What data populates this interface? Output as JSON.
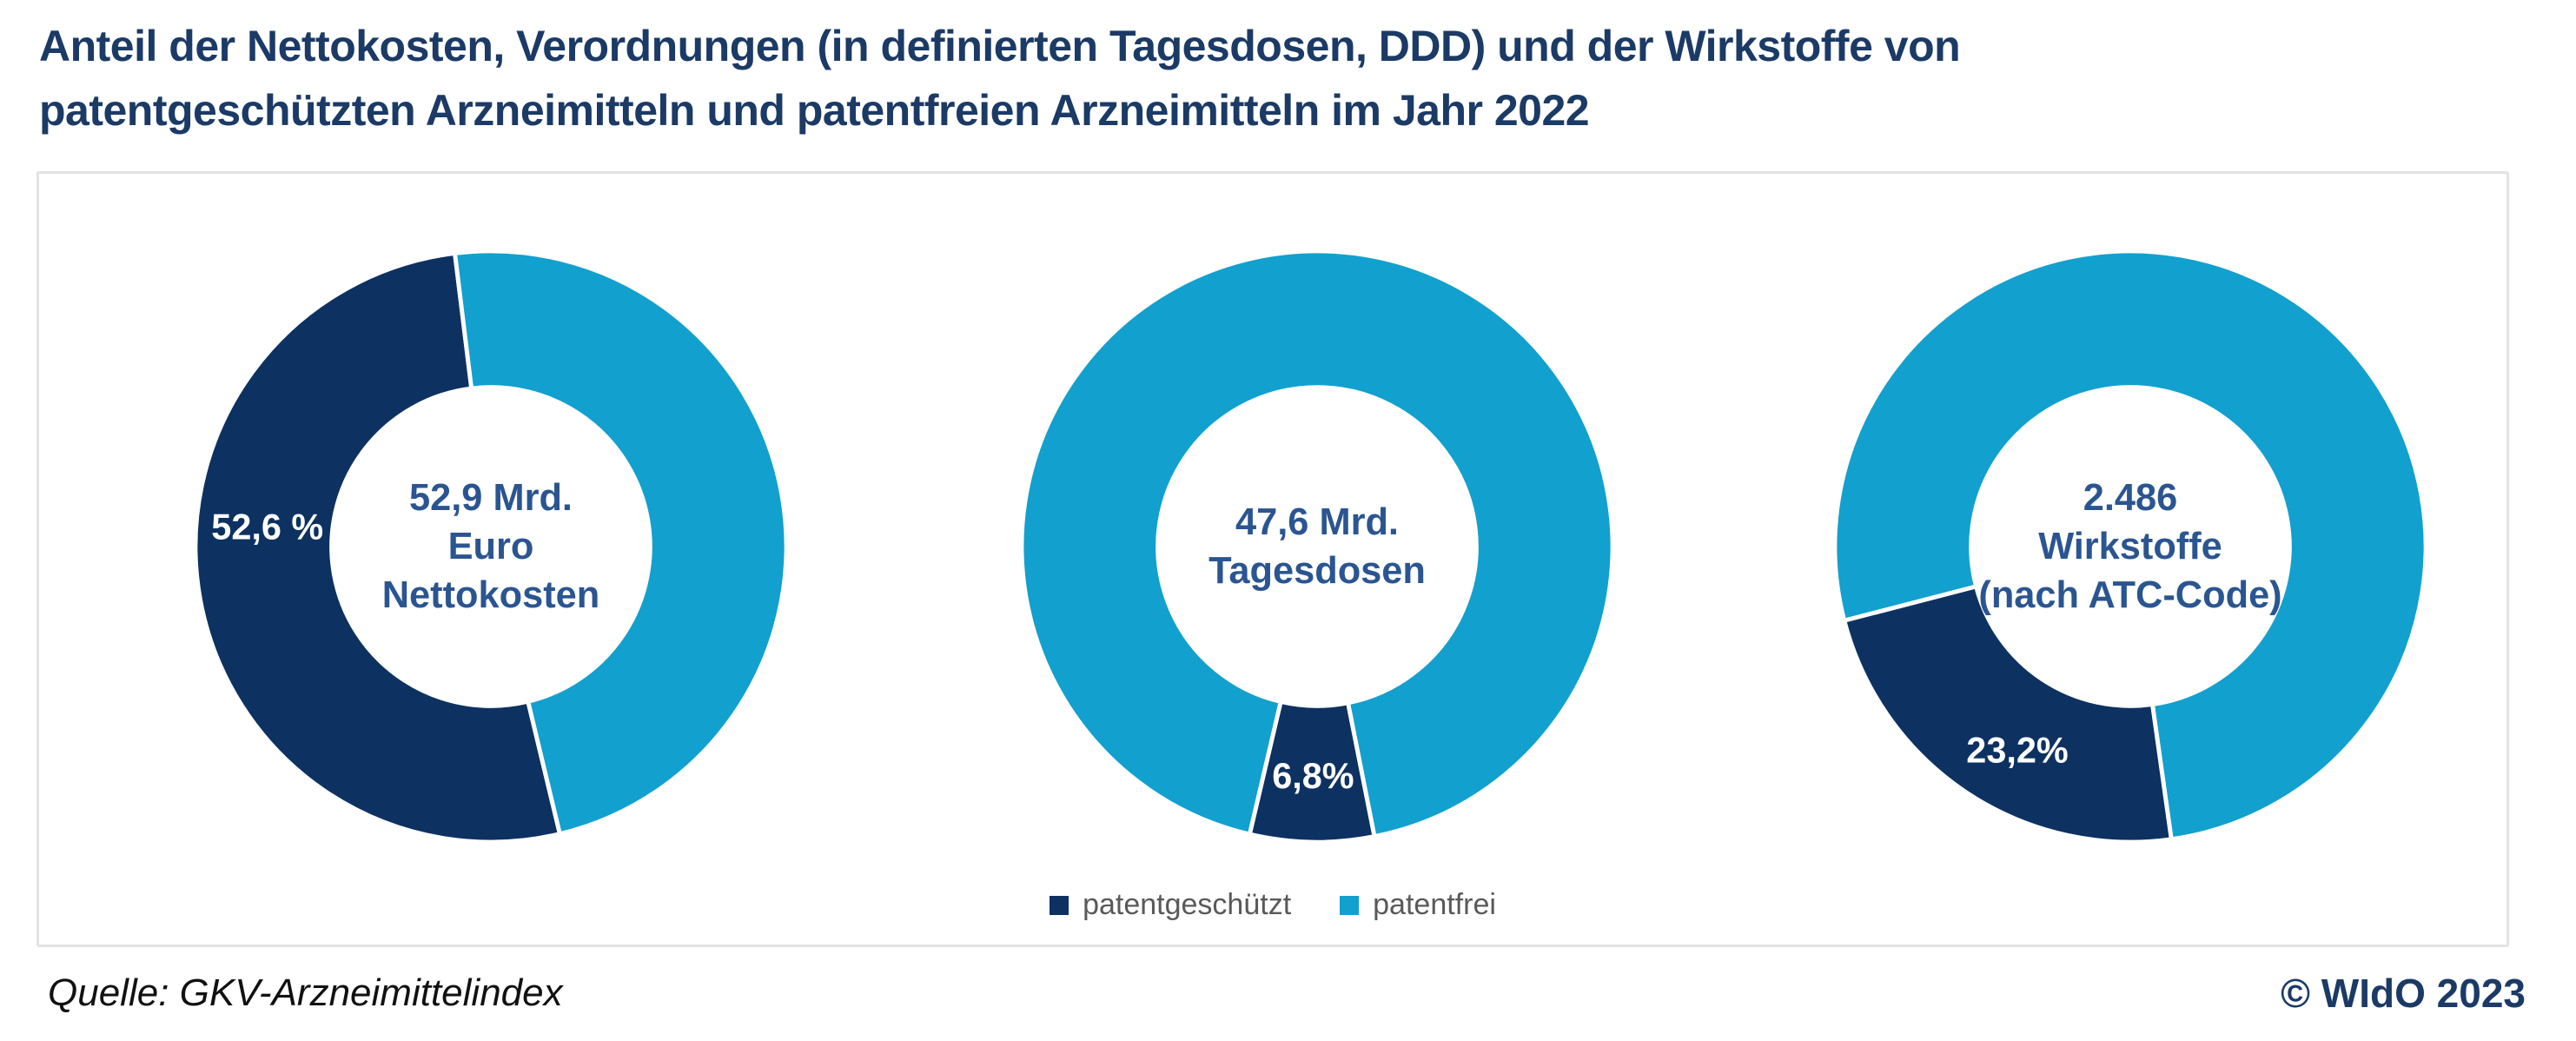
{
  "header": {
    "title_line1": "Anteil der Nettokosten, Verordnungen (in definierten Tagesdosen, DDD) und der Wirkstoffe von",
    "title_line2": "patentgeschützten Arzneimitteln und patentfreien Arzneimitteln im Jahr 2022"
  },
  "colors": {
    "patented_dark_blue": "#0D3161",
    "patent_free_light_blue": "#12A0CE",
    "title_navy": "#1B3A66",
    "center_text_blue": "#2A5591",
    "legend_text_gray": "#595959",
    "panel_border_gray": "#E3E3E3",
    "segment_separator": "#FFFFFF"
  },
  "chart_data": {
    "type": "pie",
    "subtype": "donut",
    "unit": "%",
    "legend": [
      "patentgeschützt",
      "patentfrei"
    ],
    "legend_position": "bottom-center",
    "series_colors": {
      "patentgeschützt": "#0D3161",
      "patentfrei": "#12A0CE"
    },
    "charts": [
      {
        "id": "nettokosten",
        "center_lines": [
          "52,9 Mrd.",
          "Euro",
          "Nettokosten"
        ],
        "segments": [
          {
            "name": "patentgeschützt",
            "value_pct": 52.6,
            "label": "52,6 %",
            "start_deg": 166.5,
            "end_deg": 353.0,
            "label_angle_deg": 275,
            "label_radius": 262
          },
          {
            "name": "patentfrei",
            "value_pct": 47.4,
            "label": "",
            "start_deg": -7.0,
            "end_deg": 166.5
          }
        ]
      },
      {
        "id": "tagesdosen",
        "center_lines": [
          "47,6 Mrd.",
          "Tagesdosen"
        ],
        "segments": [
          {
            "name": "patentgeschützt",
            "value_pct": 6.8,
            "label": "6,8%",
            "start_deg": 168.8,
            "end_deg": 193.2,
            "label_angle_deg": 181,
            "label_radius": 268
          },
          {
            "name": "patentfrei",
            "value_pct": 93.2,
            "label": "",
            "start_deg": 193.2,
            "end_deg": 528.8
          }
        ]
      },
      {
        "id": "wirkstoffe",
        "center_lines": [
          "2.486",
          "Wirkstoffe",
          "(nach ATC-Code)"
        ],
        "segments": [
          {
            "name": "patentgeschützt",
            "value_pct": 23.2,
            "label": "23,2%",
            "start_deg": 172.0,
            "end_deg": 255.5,
            "label_angle_deg": 209,
            "label_radius": 272
          },
          {
            "name": "patentfrei",
            "value_pct": 76.8,
            "label": "",
            "start_deg": 255.5,
            "end_deg": 532.0
          }
        ]
      }
    ]
  },
  "footer": {
    "source": "Quelle: GKV-Arzneimittelindex",
    "copyright": "© WIdO 2023"
  }
}
